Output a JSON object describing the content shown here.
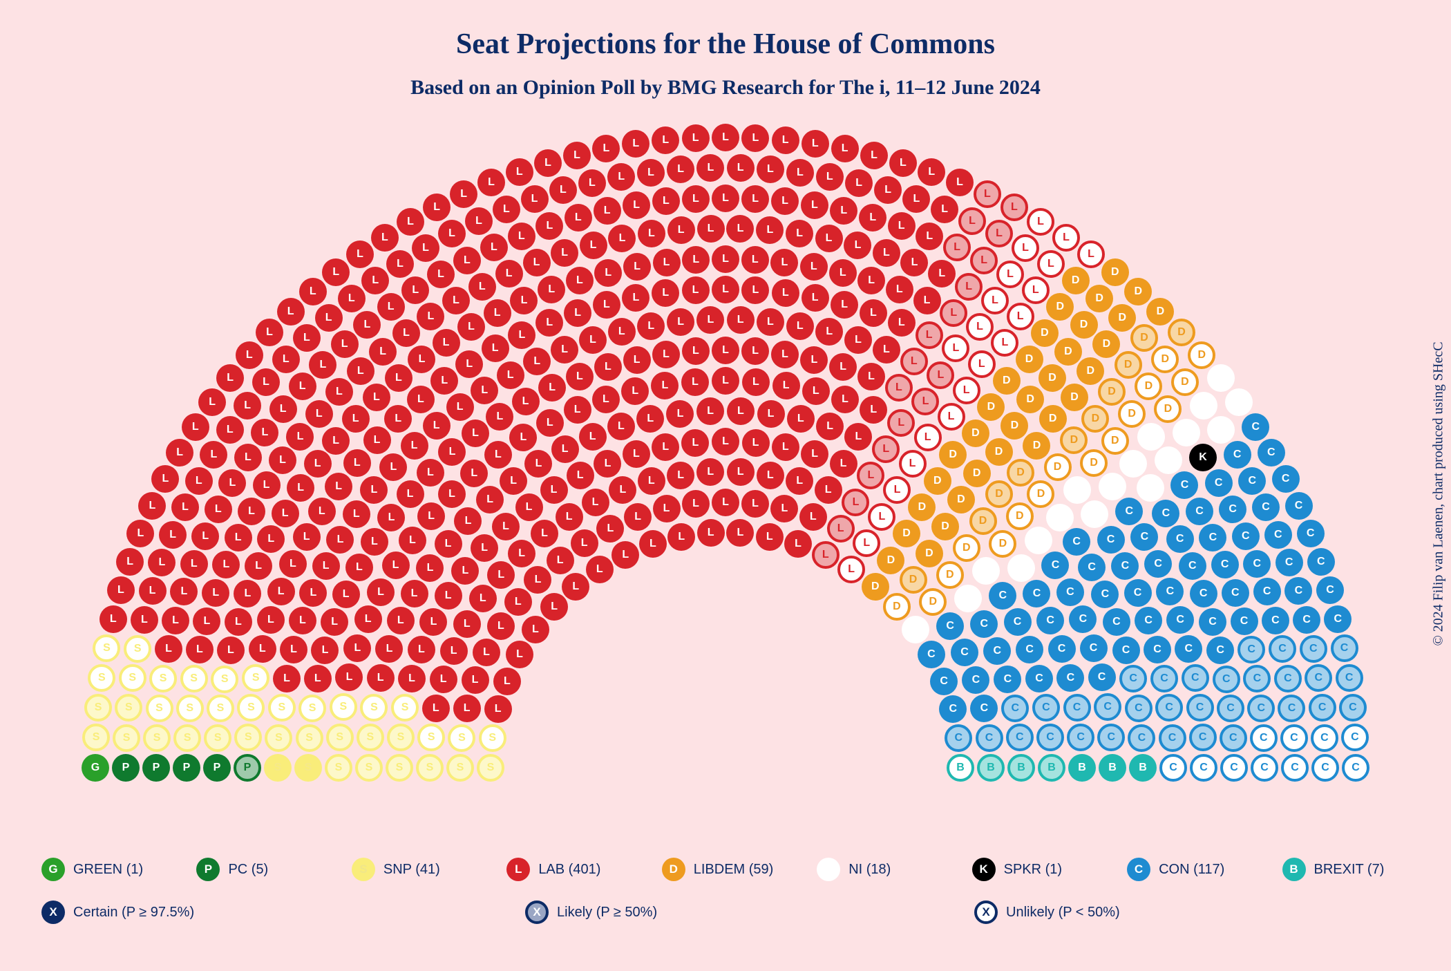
{
  "title": "Seat Projections for the House of Commons",
  "subtitle": "Based on an Opinion Poll by BMG Research for The i, 11–12 June 2024",
  "credit": "© 2024 Filip van Laenen, chart produced using SHecC",
  "total_seats": 650,
  "parties": [
    {
      "key": "green",
      "letter": "G",
      "label": "GREEN",
      "seats": 1,
      "color": "#2aa02a"
    },
    {
      "key": "pc",
      "letter": "P",
      "label": "PC",
      "seats": 5,
      "color": "#0f7a2e"
    },
    {
      "key": "snp",
      "letter": "S",
      "label": "SNP",
      "seats": 41,
      "color": "#f9ed7a"
    },
    {
      "key": "lab",
      "letter": "L",
      "label": "LAB",
      "seats": 401,
      "color": "#d8232a"
    },
    {
      "key": "libdem",
      "letter": "D",
      "label": "LIBDEM",
      "seats": 59,
      "color": "#ee9b1f"
    },
    {
      "key": "ni",
      "letter": "",
      "label": "NI",
      "seats": 18,
      "color": "#ffffff"
    },
    {
      "key": "spkr",
      "letter": "K",
      "label": "SPKR",
      "seats": 1,
      "color": "#000000"
    },
    {
      "key": "con",
      "letter": "C",
      "label": "CON",
      "seats": 117,
      "color": "#1e8bd1"
    },
    {
      "key": "brexit",
      "letter": "B",
      "label": "BREXIT",
      "seats": 7,
      "color": "#1fb8b0"
    }
  ],
  "seat_styles": {
    "green": {
      "certain": 1,
      "likely": 0,
      "unlikely": 0
    },
    "pc": {
      "certain": 4,
      "likely": 1,
      "unlikely": 0
    },
    "snp": {
      "certain": 2,
      "likely": 19,
      "unlikely": 20
    },
    "lab": {
      "certain": 361,
      "likely": 19,
      "unlikely": 21
    },
    "libdem": {
      "certain": 33,
      "likely": 10,
      "unlikely": 16
    },
    "ni": {
      "certain": 18,
      "likely": 0,
      "unlikely": 0
    },
    "spkr": {
      "certain": 1,
      "likely": 0,
      "unlikely": 0
    },
    "con": {
      "certain": 72,
      "likely": 34,
      "unlikely": 11
    },
    "brexit": {
      "certain": 3,
      "likely": 3,
      "unlikely": 1
    }
  },
  "certainty_legend": [
    {
      "key": "certain",
      "label": "Certain (P ≥ 97.5%)"
    },
    {
      "key": "likely",
      "label": "Likely (P ≥ 50%)"
    },
    {
      "key": "unlikely",
      "label": "Unlikely (P < 50%)"
    }
  ],
  "likely_alpha": "66",
  "label_color": "#0d2b66",
  "hemicycle": {
    "rows": 14,
    "inner_radius": 340,
    "row_spacing": 44,
    "seat_size": 40,
    "seat_spacing_arc": 44,
    "center_frac_x": 0.5,
    "center_frac_y": 0.98,
    "angle_start": 180,
    "angle_end": 0
  }
}
